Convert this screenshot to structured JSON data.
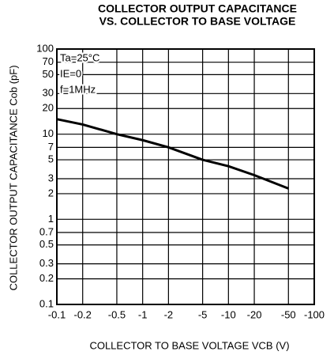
{
  "chart_data": {
    "type": "line",
    "title": "COLLECTOR OUTPUT CAPACITANCE",
    "subtitle": "VS. COLLECTOR TO BASE VOLTAGE",
    "x_label": "COLLECTOR TO BASE VOLTAGE  VCB (V)",
    "y_label": "COLLECTOR OUTPUT CAPACITANCE  Cob (pF)",
    "annotations": [
      "Ta=25°C",
      "IE=0",
      "f=1MHz"
    ],
    "x": [
      -0.1,
      -0.2,
      -0.5,
      -1,
      -2,
      -5,
      -10,
      -20,
      -50
    ],
    "series": [
      {
        "name": "Cob",
        "color": "#000000",
        "values": [
          15,
          13,
          10,
          8.5,
          7,
          5,
          4.2,
          3.3,
          2.3
        ]
      }
    ],
    "xlim": [
      -0.1,
      -100
    ],
    "xticks": [
      -0.1,
      -0.2,
      -0.5,
      -1,
      -2,
      -5,
      -10,
      -20,
      -50,
      -100
    ],
    "ylim": [
      0.1,
      100
    ],
    "yticks": [
      0.1,
      0.2,
      0.3,
      0.5,
      0.7,
      1,
      2,
      3,
      5,
      7,
      10,
      20,
      30,
      50,
      70,
      100
    ],
    "xscale": "log",
    "yscale": "log",
    "grid": true
  }
}
